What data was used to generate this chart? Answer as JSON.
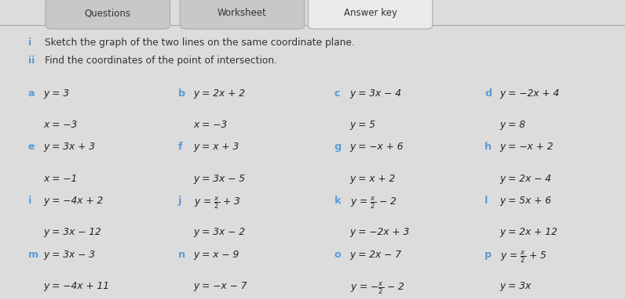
{
  "bg_color": "#dcdcdc",
  "content_bg": "#ebebeb",
  "tab_labels": [
    "Questions",
    "Worksheet",
    "Answer key"
  ],
  "active_tab": "Answer key",
  "instruction_i": "i    Sketch the graph of the two lines on the same coordinate plane.",
  "instruction_ii": "ii   Find the coordinates of the point of intersection.",
  "items": [
    {
      "label": "a",
      "line1": "y = 3",
      "line2": "x = −3",
      "col": 0,
      "row": 0
    },
    {
      "label": "b",
      "line1": "y = 2x + 2",
      "line2": "x = −3",
      "col": 1,
      "row": 0
    },
    {
      "label": "c",
      "line1": "y = 3x − 4",
      "line2": "y = 5",
      "col": 2,
      "row": 0
    },
    {
      "label": "d",
      "line1": "y = −2x + 4",
      "line2": "y = 8",
      "col": 3,
      "row": 0
    },
    {
      "label": "e",
      "line1": "y = 3x + 3",
      "line2": "x = −1",
      "col": 0,
      "row": 1
    },
    {
      "label": "f",
      "line1": "y = x + 3",
      "line2": "y = 3x − 5",
      "col": 1,
      "row": 1
    },
    {
      "label": "g",
      "line1": "y = −x + 6",
      "line2": "y = x + 2",
      "col": 2,
      "row": 1
    },
    {
      "label": "h",
      "line1": "y = −x + 2",
      "line2": "y = 2x − 4",
      "col": 3,
      "row": 1
    },
    {
      "label": "i",
      "line1": "y = −4x + 2",
      "line2": "y = 3x − 12",
      "col": 0,
      "row": 2
    },
    {
      "label": "j",
      "line1": "y = $\\frac{x}{2}$ + 3",
      "line2": "y = 3x − 2",
      "col": 1,
      "row": 2
    },
    {
      "label": "k",
      "line1": "y = $\\frac{x}{2}$ − 2",
      "line2": "y = −2x + 3",
      "col": 2,
      "row": 2
    },
    {
      "label": "l",
      "line1": "y = 5x + 6",
      "line2": "y = 2x + 12",
      "col": 3,
      "row": 2
    },
    {
      "label": "m",
      "line1": "y = 3x − 3",
      "line2": "y = −4x + 11",
      "col": 0,
      "row": 3
    },
    {
      "label": "n",
      "line1": "y = x − 9",
      "line2": "y = −x − 7",
      "col": 1,
      "row": 3
    },
    {
      "label": "o",
      "line1": "y = 2x − 7",
      "line2": "y = −$\\frac{x}{2}$ − 2",
      "col": 2,
      "row": 3
    },
    {
      "label": "p",
      "line1": "y = $\\frac{x}{2}$ + 5",
      "line2": "y = 3x",
      "col": 3,
      "row": 3
    }
  ],
  "label_color": "#5b9bd5",
  "text_color": "#333333",
  "eq_color": "#222222",
  "instr_label_color": "#5b9bd5"
}
